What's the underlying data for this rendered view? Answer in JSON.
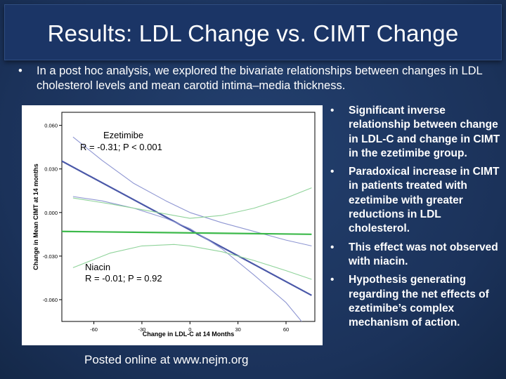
{
  "slide": {
    "title": "Results: LDL Change vs. CIMT Change",
    "intro_bullet": "•",
    "intro_text": "In a post hoc analysis, we explored the bivariate relationships between changes in LDL cholesterol levels and mean carotid intima–media thickness.",
    "right_bullet": "•",
    "right_points": [
      "Significant inverse relationship between change in LDL-C and change in CIMT in the ezetimibe group.",
      "Paradoxical increase in CIMT in patients treated with ezetimibe with greater reductions in LDL cholesterol.",
      "This effect was not observed with niacin.",
      "Hypothesis generating regarding the net effects of ezetimibe’s complex mechanism of action."
    ],
    "footer": "Posted online at www.nejm.org"
  },
  "colors": {
    "background": "#1d3560",
    "title_bar": "#1b3566",
    "ezetimibe_line": "#4a58a8",
    "ezetimibe_ci": "#8e96d2",
    "niacin_line": "#3cb94a",
    "niacin_ci": "#8fd39a"
  },
  "chart_data": {
    "type": "line",
    "xlabel": "Change in LDL-C at 14 Months",
    "ylabel": "Change in Mean CIMT at 14 months",
    "xlim": [
      -80,
      78
    ],
    "ylim": [
      -0.075,
      0.069
    ],
    "x_ticks": [
      -60,
      -30,
      0,
      30,
      60
    ],
    "x_tick_labels": [
      "-60",
      "-30",
      "0",
      "30",
      "60"
    ],
    "y_ticks": [
      -0.06,
      -0.03,
      0.0,
      0.03,
      0.06
    ],
    "y_tick_labels": [
      "-0.060",
      "-0.030",
      "0.000",
      "0.030",
      "0.060"
    ],
    "grid": false,
    "annotations": [
      {
        "group": "ezetimibe",
        "name": "Ezetimibe",
        "stats": "R = -0.31; P < 0.001"
      },
      {
        "group": "niacin",
        "name": "Niacin",
        "stats": "R = -0.01; P = 0.92"
      }
    ],
    "series": [
      {
        "group": "ezetimibe",
        "role": "fit",
        "x": [
          -81,
          76
        ],
        "y": [
          0.036,
          -0.057
        ]
      },
      {
        "group": "ezetimibe",
        "role": "ci-upper",
        "x": [
          -73,
          -55,
          -35,
          -15,
          0,
          20,
          40,
          60,
          76
        ],
        "y": [
          0.052,
          0.036,
          0.02,
          0.008,
          0.0,
          -0.007,
          -0.013,
          -0.019,
          -0.023
        ]
      },
      {
        "group": "ezetimibe",
        "role": "ci-lower",
        "x": [
          -73,
          -55,
          -35,
          -15,
          0,
          20,
          40,
          60,
          75
        ],
        "y": [
          0.011,
          0.008,
          0.003,
          -0.004,
          -0.011,
          -0.025,
          -0.043,
          -0.062,
          -0.082
        ]
      },
      {
        "group": "niacin",
        "role": "fit",
        "x": [
          -81,
          76
        ],
        "y": [
          -0.013,
          -0.015
        ]
      },
      {
        "group": "niacin",
        "role": "ci-upper",
        "x": [
          -73,
          -50,
          -30,
          -10,
          0,
          20,
          40,
          60,
          76
        ],
        "y": [
          0.01,
          0.006,
          0.002,
          -0.002,
          -0.004,
          -0.002,
          0.003,
          0.01,
          0.017
        ]
      },
      {
        "group": "niacin",
        "role": "ci-lower",
        "x": [
          -73,
          -50,
          -30,
          -10,
          0,
          20,
          40,
          60,
          76
        ],
        "y": [
          -0.038,
          -0.028,
          -0.023,
          -0.022,
          -0.023,
          -0.027,
          -0.033,
          -0.04,
          -0.046
        ]
      }
    ]
  }
}
